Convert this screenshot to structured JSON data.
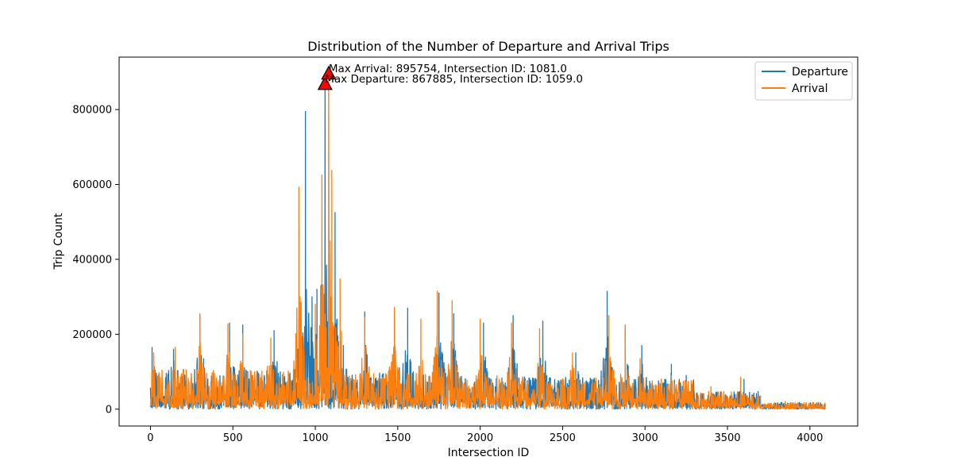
{
  "chart_data": {
    "type": "line",
    "title": "Distribution of the Number of Departure and Arrival Trips",
    "xlabel": "Intersection ID",
    "ylabel": "Trip Count",
    "xlim": [
      -190,
      4290
    ],
    "ylim": [
      -45000,
      940000
    ],
    "xticks": [
      0,
      500,
      1000,
      1500,
      2000,
      2500,
      3000,
      3500,
      4000
    ],
    "yticks": [
      0,
      200000,
      400000,
      600000,
      800000
    ],
    "ytick_labels": [
      "0",
      "200000",
      "400000",
      "600000",
      "800000"
    ],
    "legend_position": "top-right",
    "grid": false,
    "series": [
      {
        "name": "Departure",
        "color": "#1f77b4",
        "peaks": [
          [
            10,
            165000
          ],
          [
            140,
            160000
          ],
          [
            300,
            250000
          ],
          [
            480,
            230000
          ],
          [
            560,
            225000
          ],
          [
            750,
            210000
          ],
          [
            900,
            240000
          ],
          [
            940,
            795000
          ],
          [
            980,
            300000
          ],
          [
            1010,
            320000
          ],
          [
            1059,
            867885
          ],
          [
            1120,
            525000
          ],
          [
            1170,
            170000
          ],
          [
            1300,
            260000
          ],
          [
            1480,
            260000
          ],
          [
            1560,
            270000
          ],
          [
            1750,
            310000
          ],
          [
            1840,
            255000
          ],
          [
            2020,
            230000
          ],
          [
            2200,
            250000
          ],
          [
            2380,
            235000
          ],
          [
            2580,
            150000
          ],
          [
            2770,
            315000
          ],
          [
            2880,
            220000
          ],
          [
            2980,
            170000
          ],
          [
            3160,
            120000
          ],
          [
            3250,
            90000
          ],
          [
            3600,
            80000
          ],
          [
            3700,
            35000
          ],
          [
            4090,
            15000
          ]
        ]
      },
      {
        "name": "Arrival",
        "color": "#ff7f0e",
        "peaks": [
          [
            20,
            150000
          ],
          [
            150,
            165000
          ],
          [
            300,
            255000
          ],
          [
            470,
            228000
          ],
          [
            560,
            200000
          ],
          [
            730,
            190000
          ],
          [
            900,
            593000
          ],
          [
            1000,
            280000
          ],
          [
            1040,
            625000
          ],
          [
            1081,
            895754
          ],
          [
            1100,
            638000
          ],
          [
            1150,
            348000
          ],
          [
            1300,
            245000
          ],
          [
            1480,
            272000
          ],
          [
            1640,
            240000
          ],
          [
            1740,
            315000
          ],
          [
            1830,
            290000
          ],
          [
            2000,
            240000
          ],
          [
            2190,
            230000
          ],
          [
            2360,
            215000
          ],
          [
            2560,
            150000
          ],
          [
            2780,
            250000
          ],
          [
            2880,
            225000
          ],
          [
            2970,
            135000
          ],
          [
            3160,
            90000
          ],
          [
            3400,
            60000
          ],
          [
            3580,
            85000
          ],
          [
            3700,
            35000
          ],
          [
            3850,
            20000
          ],
          [
            4090,
            15000
          ]
        ]
      }
    ],
    "markers": [
      {
        "name": "Max Departure",
        "x": 1059,
        "y": 867885,
        "color": "#ff0000"
      },
      {
        "name": "Max Arrival",
        "x": 1081,
        "y": 895754,
        "color": "#ff0000"
      }
    ],
    "annotations": [
      {
        "text": "Max Arrival: 895754, Intersection ID: 1081.0",
        "x": 1081,
        "y": 895754
      },
      {
        "text": "Max Departure: 867885, Intersection ID: 1059.0",
        "x": 1059,
        "y": 867885
      }
    ]
  }
}
